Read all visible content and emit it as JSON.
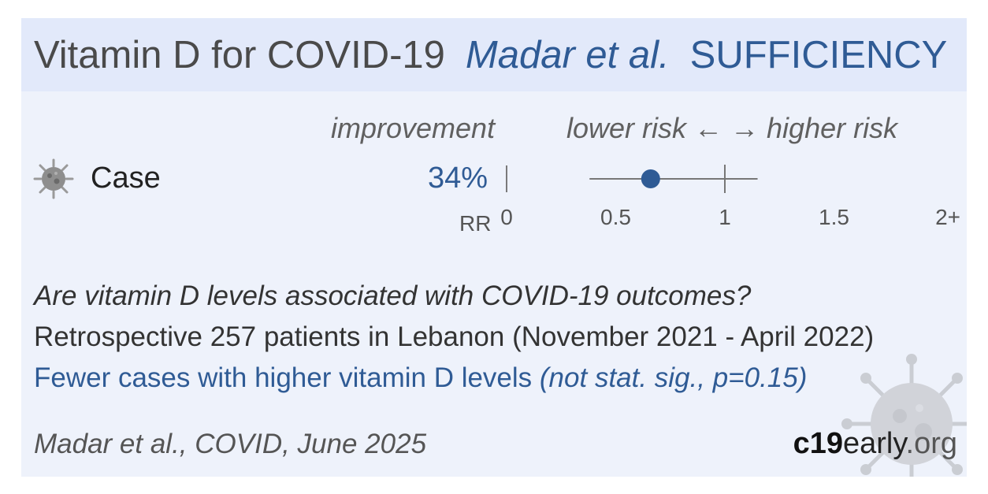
{
  "header": {
    "title": "Vitamin D for COVID-19",
    "authors": "Madar et al.",
    "tag": "SUFFICIENCY"
  },
  "columns": {
    "improvement": "improvement",
    "risk": "lower risk ← → higher risk"
  },
  "row": {
    "icon": "virus-icon",
    "label": "Case",
    "improvement": "34%"
  },
  "axis": {
    "rr_label": "RR"
  },
  "description": {
    "question": "Are vitamin D levels associated with COVID-19 outcomes?",
    "design": "Retrospective 257 patients in Lebanon (November 2021 - April 2022)",
    "result": "Fewer cases with higher vitamin D levels",
    "result_note": "(not stat. sig., p=0.15)"
  },
  "footer": {
    "citation": "Madar et al., COVID, June 2025",
    "brand_bold": "c19",
    "brand_mid": "early",
    "brand_end": ".org"
  },
  "colors": {
    "accent": "#2f5b95",
    "header_bg": "#e2e9fa",
    "card_bg": "#eef2fb"
  },
  "chart_data": {
    "type": "forest",
    "xlim": [
      0,
      2
    ],
    "ticks": [
      {
        "value": 0,
        "label": "0"
      },
      {
        "value": 0.5,
        "label": "0.5"
      },
      {
        "value": 1,
        "label": "1"
      },
      {
        "value": 1.5,
        "label": "1.5"
      },
      {
        "value": 2,
        "label": "2+"
      }
    ],
    "reference": 1,
    "points": [
      {
        "name": "Case",
        "rr": 0.66,
        "ci_low": 0.38,
        "ci_high": 1.15
      }
    ]
  }
}
